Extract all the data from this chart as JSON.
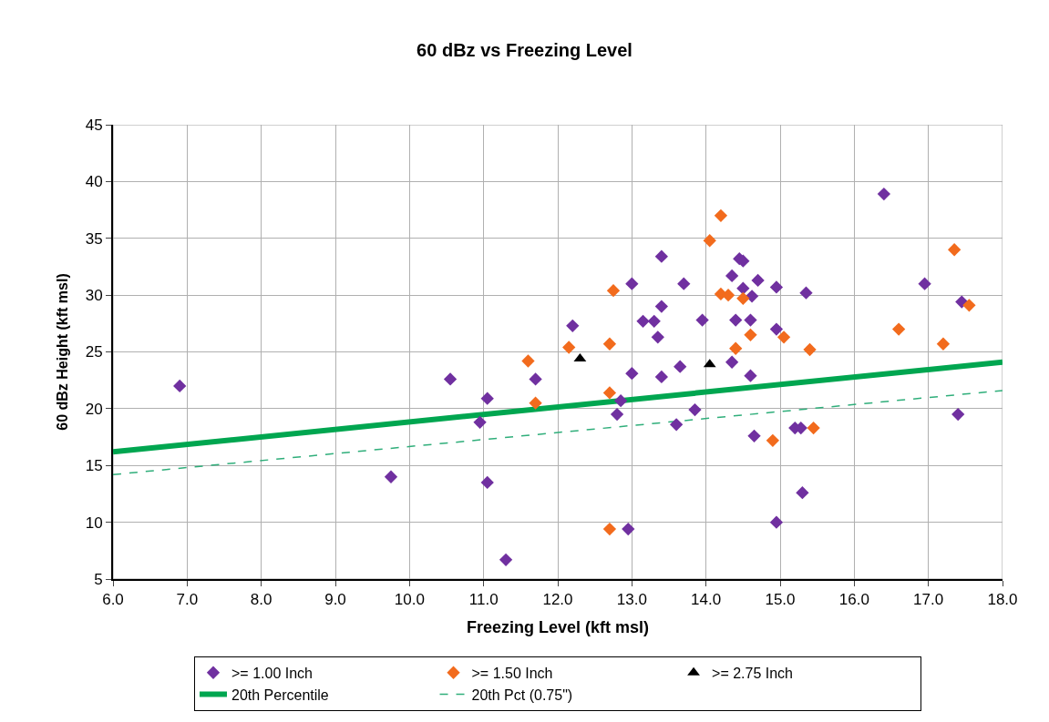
{
  "chart_data": {
    "type": "scatter",
    "title": "60 dBz vs Freezing Level",
    "xlabel": "Freezing Level (kft msl)",
    "ylabel": "60 dBz Height (kft msl)",
    "xlim": [
      6.0,
      18.0
    ],
    "xticks": [
      {
        "value": 6,
        "label": "6.0"
      },
      {
        "value": 7,
        "label": "7.0"
      },
      {
        "value": 8,
        "label": "8.0"
      },
      {
        "value": 9,
        "label": "9.0"
      },
      {
        "value": 10,
        "label": "10.0"
      },
      {
        "value": 11,
        "label": "11.0"
      },
      {
        "value": 12,
        "label": "12.0"
      },
      {
        "value": 13,
        "label": "13.0"
      },
      {
        "value": 14,
        "label": "14.0"
      },
      {
        "value": 15,
        "label": "15.0"
      },
      {
        "value": 16,
        "label": "16.0"
      },
      {
        "value": 17,
        "label": "17.0"
      },
      {
        "value": 18,
        "label": "18.0"
      }
    ],
    "ylim": [
      5,
      45
    ],
    "yticks": [
      5,
      10,
      15,
      20,
      25,
      30,
      35,
      40,
      45
    ],
    "grid": true,
    "legend": "bottom",
    "series": [
      {
        "name": ">= 1.00 Inch",
        "color": "#7030a0",
        "marker": "diamond",
        "x": [
          6.9,
          9.75,
          10.55,
          10.95,
          11.05,
          11.05,
          11.3,
          11.7,
          12.2,
          12.8,
          12.85,
          12.95,
          13.0,
          13.0,
          13.15,
          13.3,
          13.35,
          13.4,
          13.4,
          13.4,
          13.6,
          13.65,
          13.7,
          13.85,
          13.95,
          14.35,
          14.35,
          14.4,
          14.45,
          14.5,
          14.5,
          14.62,
          14.6,
          14.6,
          14.65,
          14.7,
          14.95,
          14.95,
          14.95,
          15.2,
          15.28,
          15.3,
          15.35,
          16.4,
          16.95,
          17.4,
          17.45
        ],
        "values": [
          22.0,
          14.0,
          22.6,
          18.8,
          20.9,
          13.5,
          6.7,
          22.6,
          27.3,
          19.5,
          20.7,
          9.4,
          23.1,
          31.0,
          27.7,
          27.7,
          26.3,
          29.0,
          33.4,
          22.8,
          18.6,
          23.7,
          31.0,
          19.9,
          27.8,
          24.1,
          31.7,
          27.8,
          33.2,
          33.0,
          30.6,
          29.9,
          27.8,
          22.9,
          17.6,
          31.3,
          27.0,
          30.7,
          10.0,
          18.3,
          18.3,
          12.6,
          30.2,
          38.9,
          31.0,
          19.5,
          29.4
        ]
      },
      {
        "name": ">= 1.50 Inch",
        "color": "#f26b1d",
        "marker": "diamond",
        "x": [
          11.6,
          11.7,
          12.15,
          12.7,
          12.7,
          12.75,
          12.7,
          14.05,
          14.2,
          14.2,
          14.3,
          14.4,
          14.5,
          14.6,
          14.9,
          15.05,
          15.4,
          15.45,
          16.6,
          17.2,
          17.35,
          17.55
        ],
        "values": [
          24.2,
          20.5,
          25.4,
          21.4,
          25.7,
          30.4,
          9.4,
          34.8,
          37.0,
          30.1,
          30.0,
          25.3,
          29.7,
          26.5,
          17.2,
          26.3,
          25.2,
          18.3,
          27.0,
          25.7,
          34.0,
          29.1
        ]
      },
      {
        "name": ">= 2.75 Inch",
        "color": "#000000",
        "marker": "triangle",
        "x": [
          12.3,
          14.05
        ],
        "values": [
          24.4,
          23.9
        ]
      },
      {
        "name": "20th Percentile",
        "type": "line",
        "color": "#00a650",
        "line_style": "solid",
        "marker": "none",
        "x": [
          6.0,
          18.0
        ],
        "values": [
          16.2,
          24.1
        ]
      },
      {
        "name": "20th Pct (0.75\")",
        "type": "line",
        "color": "#2fae7a",
        "line_style": "dashed",
        "marker": "none",
        "x": [
          6.0,
          18.0
        ],
        "values": [
          14.2,
          21.6
        ]
      }
    ]
  }
}
